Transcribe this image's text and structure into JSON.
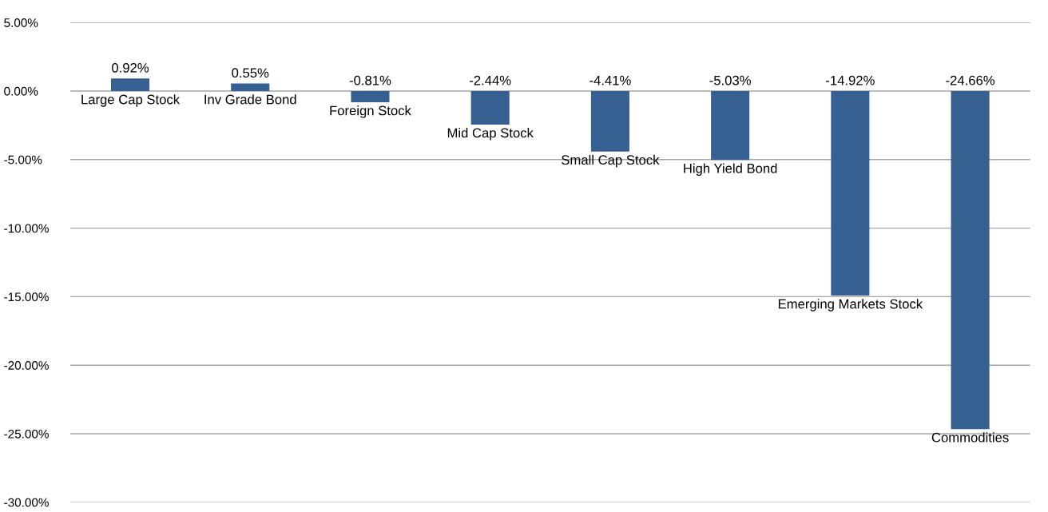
{
  "chart_data": {
    "type": "bar",
    "categories": [
      "Large Cap Stock",
      "Inv Grade Bond",
      "Foreign Stock",
      "Mid Cap Stock",
      "Small Cap Stock",
      "High Yield Bond",
      "Emerging Markets Stock",
      "Commodities"
    ],
    "values": [
      0.92,
      0.55,
      -0.81,
      -2.44,
      -4.41,
      -5.03,
      -14.92,
      -24.66
    ],
    "value_labels": [
      "0.92%",
      "0.55%",
      "-0.81%",
      "-2.44%",
      "-4.41%",
      "-5.03%",
      "-14.92%",
      "-24.66%"
    ],
    "color": "#376092",
    "ylim": [
      -30,
      5
    ],
    "yticks": [
      {
        "value": 5,
        "label": "5.00%"
      },
      {
        "value": 0,
        "label": "0.00%"
      },
      {
        "value": -5,
        "label": "-5.00%"
      },
      {
        "value": -10,
        "label": "-10.00%"
      },
      {
        "value": -15,
        "label": "-15.00%"
      },
      {
        "value": -20,
        "label": "-20.00%"
      },
      {
        "value": -25,
        "label": "-25.00%"
      },
      {
        "value": -30,
        "label": "-30.00%"
      }
    ],
    "grid": "y"
  }
}
